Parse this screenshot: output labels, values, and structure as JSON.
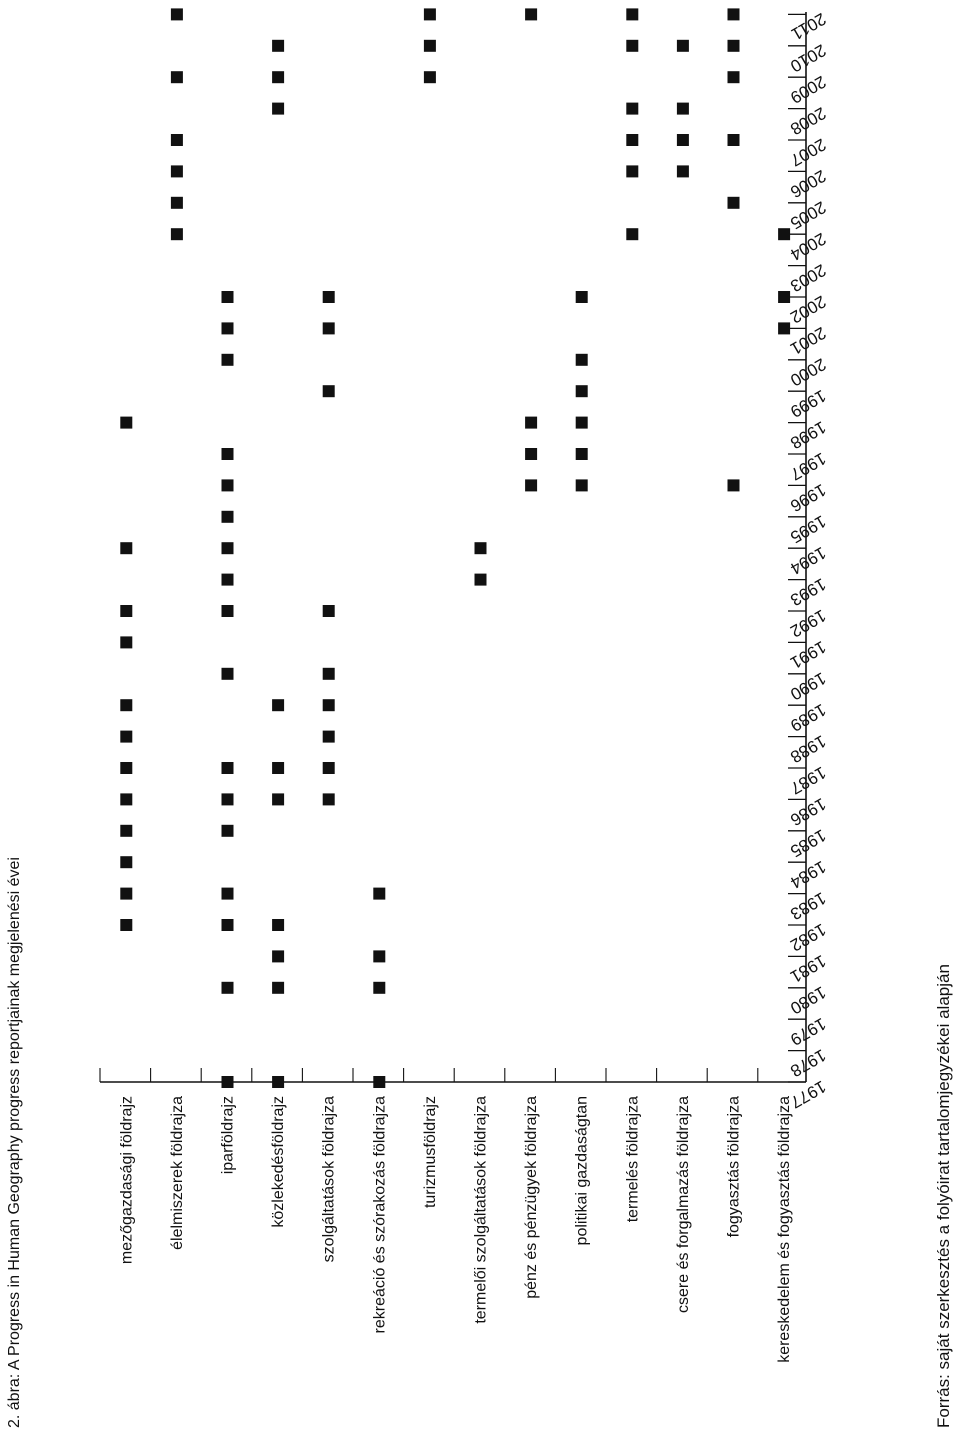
{
  "figure": {
    "caption": "2. ábra: A Progress in Human Geography progress reportjainak megjelenési évei",
    "source": "Forrás: saját szerkesztés a folyóirat tartalomjegyzékei alapján"
  },
  "chart_data": {
    "type": "scatter",
    "title": "2. ábra: A Progress in Human Geography progress reportjainak megjelenési évei",
    "xlabel": "",
    "ylabel": "",
    "years": [
      1977,
      1978,
      1979,
      1980,
      1981,
      1982,
      1983,
      1984,
      1985,
      1986,
      1987,
      1988,
      1989,
      1990,
      1991,
      1992,
      1993,
      1994,
      1995,
      1996,
      1997,
      1998,
      1999,
      2000,
      2001,
      2002,
      2003,
      2004,
      2005,
      2006,
      2007,
      2008,
      2009,
      2010,
      2011
    ],
    "categories": [
      "mezőgazdasági földrajz",
      "élelmiszerek földrajza",
      "iparföldrajz",
      "közlekedésföldrajz",
      "szolgáltatások földrajza",
      "rekreáció és szórakozás földrajza",
      "turizmusföldrajz",
      "termelői szolgáltatások földrajza",
      "pénz és pénzügyek földrajza",
      "politikai gazdaságtan",
      "termelés földrajza",
      "csere és forgalmazás földrajza",
      "fogyasztás földrajza",
      "kereskedelem és fogyasztás földrajza"
    ],
    "series": [
      {
        "name": "mezőgazdasági földrajz",
        "years": [
          1982,
          1983,
          1984,
          1985,
          1986,
          1987,
          1988,
          1989,
          1991,
          1992,
          1994,
          1998
        ]
      },
      {
        "name": "élelmiszerek földrajza",
        "years": [
          2004,
          2005,
          2006,
          2007,
          2009,
          2011
        ]
      },
      {
        "name": "iparföldrajz",
        "years": [
          1977,
          1980,
          1982,
          1983,
          1985,
          1986,
          1987,
          1990,
          1992,
          1993,
          1994,
          1995,
          1996,
          1997,
          2000,
          2001,
          2002
        ]
      },
      {
        "name": "közlekedésföldrajz",
        "years": [
          1977,
          1980,
          1981,
          1982,
          1986,
          1987,
          1989,
          2008,
          2009,
          2010
        ]
      },
      {
        "name": "szolgáltatások földrajza",
        "years": [
          1986,
          1987,
          1988,
          1989,
          1990,
          1992,
          1999,
          2001,
          2002
        ]
      },
      {
        "name": "rekreáció és szórakozás földrajza",
        "years": [
          1977,
          1980,
          1981,
          1983
        ]
      },
      {
        "name": "turizmusföldrajz",
        "years": [
          2009,
          2010,
          2011
        ]
      },
      {
        "name": "termelői szolgáltatások földrajza",
        "years": [
          1993,
          1994
        ]
      },
      {
        "name": "pénz és pénzügyek földrajza",
        "years": [
          1996,
          1997,
          1998,
          2011
        ]
      },
      {
        "name": "politikai gazdaságtan",
        "years": [
          1996,
          1997,
          1998,
          1999,
          2000,
          2002
        ]
      },
      {
        "name": "termelés földrajza",
        "years": [
          2004,
          2006,
          2007,
          2008,
          2010,
          2011
        ]
      },
      {
        "name": "csere és forgalmazás földrajza",
        "years": [
          2006,
          2007,
          2008,
          2010
        ]
      },
      {
        "name": "fogyasztás földrajza",
        "years": [
          1996,
          2005,
          2007,
          2009,
          2010,
          2011
        ]
      },
      {
        "name": "kereskedelem és fogyasztás földrajza",
        "years": [
          2001,
          2002,
          2004
        ]
      }
    ],
    "grid": false,
    "legend": "none"
  }
}
